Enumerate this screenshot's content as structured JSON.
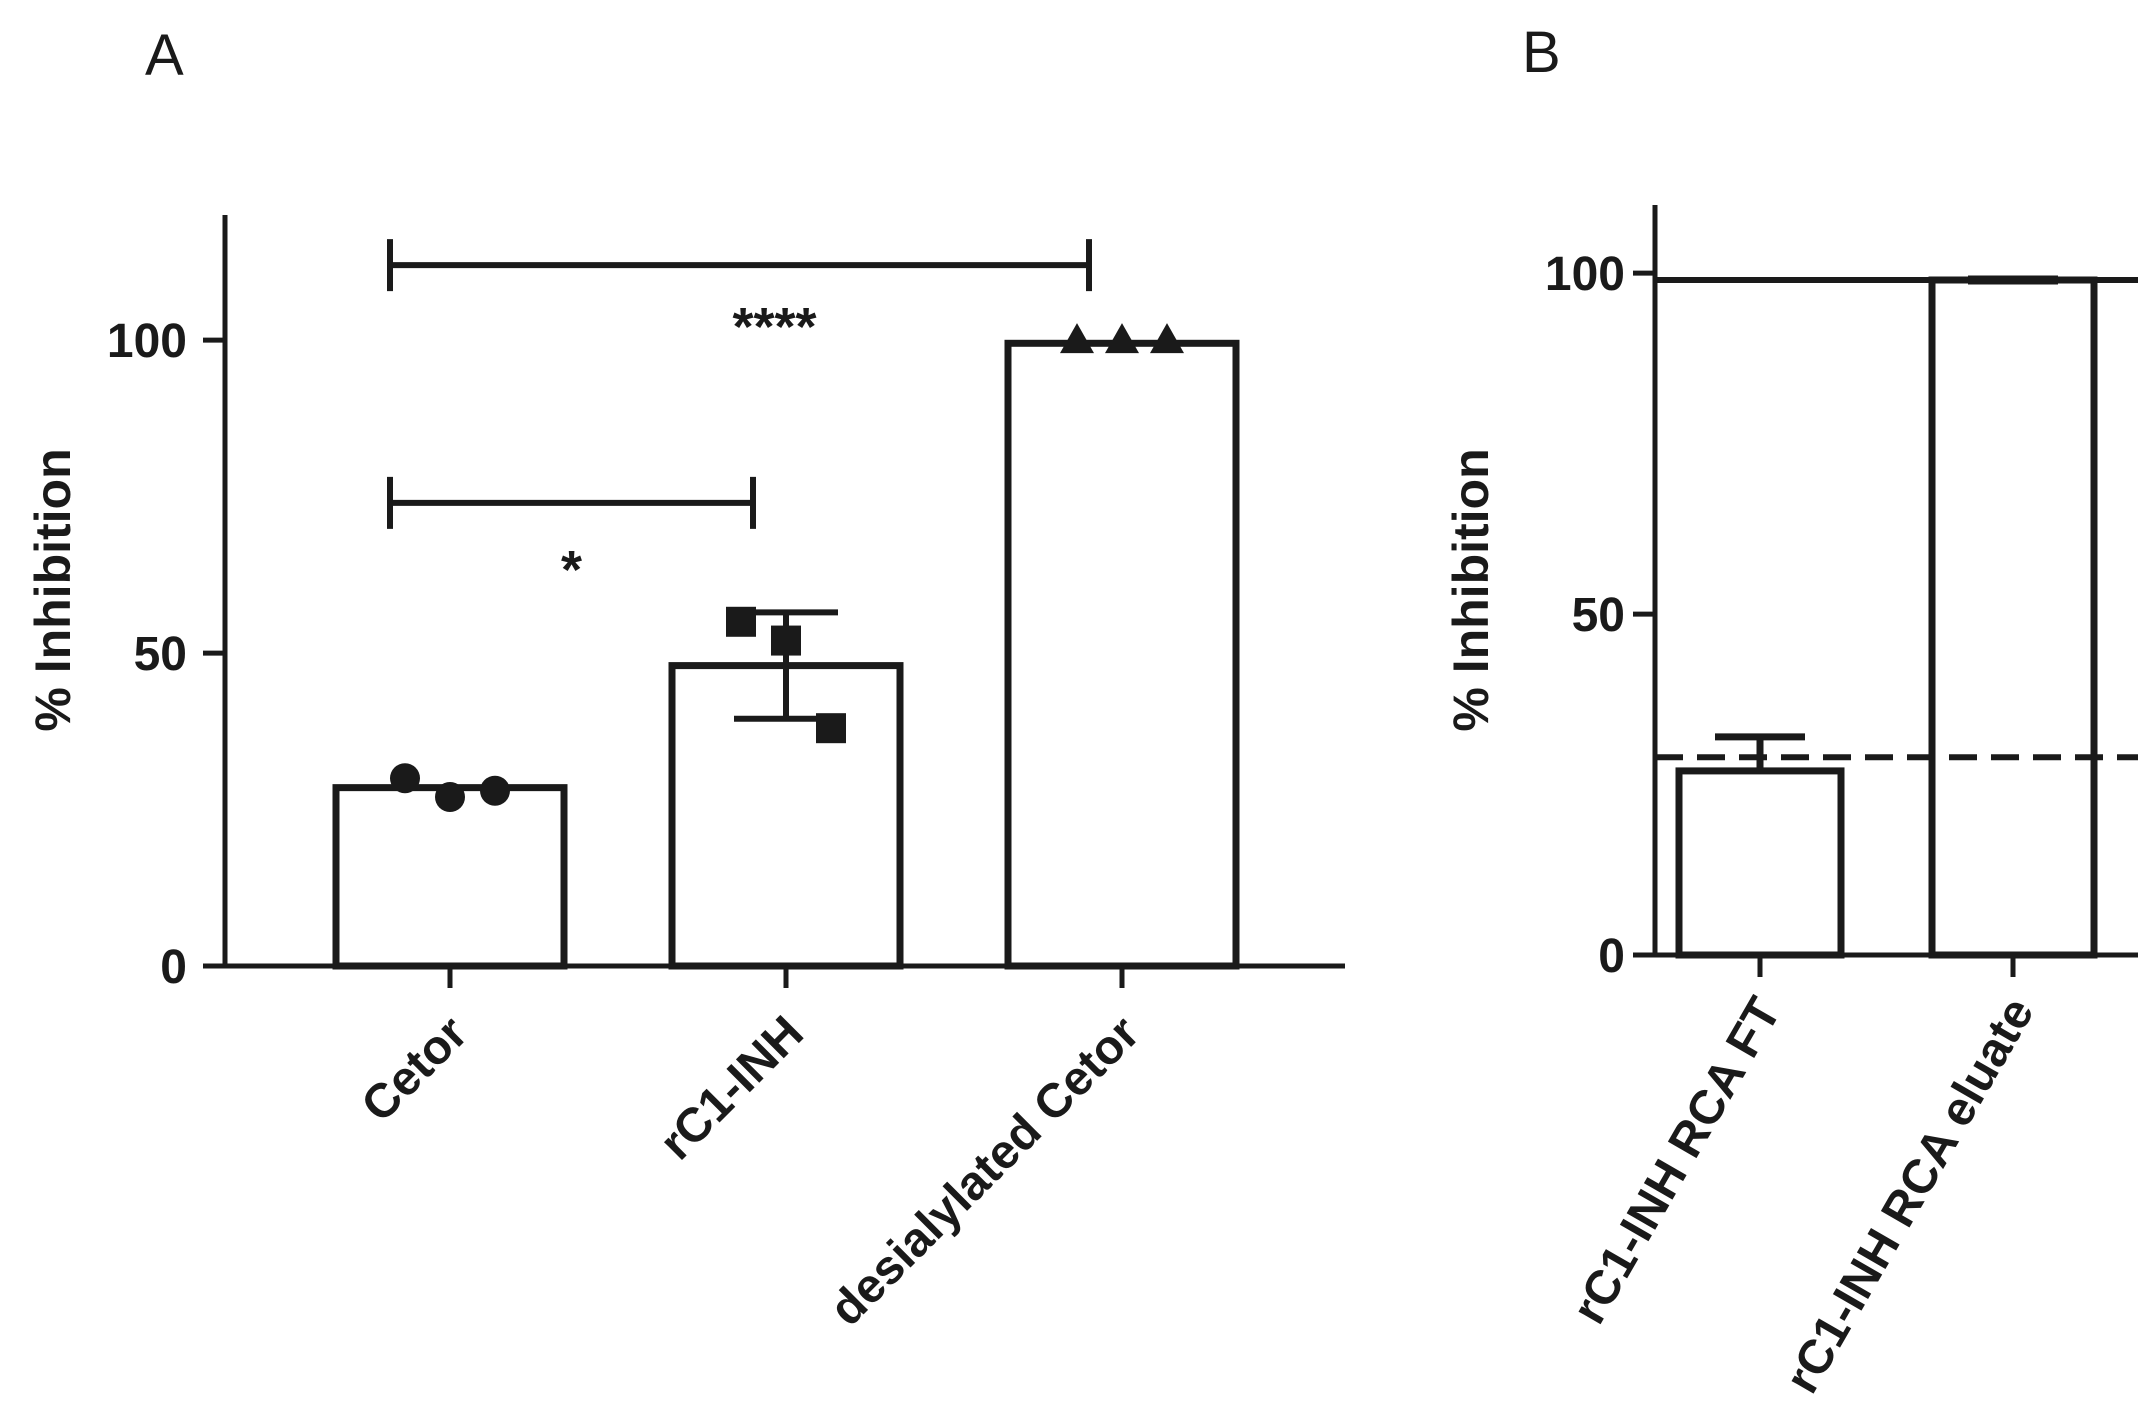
{
  "chart_data": [
    {
      "panel": "A",
      "type": "bar",
      "ylabel": "% Inhibition",
      "ylim": [
        0,
        120
      ],
      "yticks": [
        0,
        50,
        100
      ],
      "categories": [
        "Cetor",
        "rC1-INH",
        "desialylated Cetor"
      ],
      "values": [
        28.5,
        48,
        99.5
      ],
      "errors": [
        null,
        8.5,
        null
      ],
      "points": [
        [
          30,
          27,
          28
        ],
        [
          55,
          52,
          38
        ],
        [
          100,
          100,
          100
        ]
      ],
      "markers": [
        "circle",
        "square",
        "triangle"
      ],
      "significance": [
        {
          "from": 0,
          "to": 1,
          "y": 74,
          "label": "*"
        },
        {
          "from": 0,
          "to": 2,
          "y": 112,
          "label": "****"
        }
      ]
    },
    {
      "panel": "B",
      "type": "bar",
      "ylabel": "% Inhibition",
      "ylim": [
        0,
        110
      ],
      "yticks": [
        0,
        50,
        100
      ],
      "categories": [
        "rC1-INH RCA FT",
        "rC1-INH RCA eluate"
      ],
      "values": [
        27,
        99
      ],
      "errors": [
        5,
        0
      ],
      "reference_lines": [
        {
          "value": 99,
          "style": "solid"
        },
        {
          "value": 29,
          "style": "dashed"
        }
      ]
    }
  ]
}
